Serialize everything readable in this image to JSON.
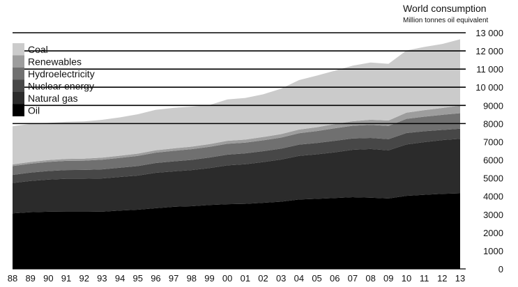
{
  "chart_data": {
    "type": "area",
    "stacked": true,
    "title": "World consumption",
    "subtitle": "Million tonnes oil equivalent",
    "ylim": [
      0,
      13000
    ],
    "y_ticks": [
      {
        "value": 0,
        "label": "0"
      },
      {
        "value": 1000,
        "label": "1000"
      },
      {
        "value": 2000,
        "label": "2000"
      },
      {
        "value": 3000,
        "label": "3000"
      },
      {
        "value": 4000,
        "label": "4000"
      },
      {
        "value": 5000,
        "label": "5000"
      },
      {
        "value": 6000,
        "label": "6000"
      },
      {
        "value": 7000,
        "label": "7000"
      },
      {
        "value": 8000,
        "label": "8000"
      },
      {
        "value": 9000,
        "label": "9000"
      },
      {
        "value": 10000,
        "label": "10 000"
      },
      {
        "value": 11000,
        "label": "11 000"
      },
      {
        "value": 12000,
        "label": "12 000"
      },
      {
        "value": 13000,
        "label": "13 000"
      }
    ],
    "categories": [
      "88",
      "89",
      "90",
      "91",
      "92",
      "93",
      "94",
      "95",
      "96",
      "97",
      "98",
      "99",
      "00",
      "01",
      "02",
      "03",
      "04",
      "05",
      "06",
      "07",
      "08",
      "09",
      "10",
      "11",
      "12",
      "13"
    ],
    "grid": "horizontal",
    "legend_position": "top-left",
    "series": [
      {
        "name": "Oil",
        "color": "#000000",
        "values": [
          3060,
          3120,
          3150,
          3160,
          3160,
          3150,
          3210,
          3260,
          3340,
          3420,
          3450,
          3520,
          3560,
          3580,
          3640,
          3700,
          3820,
          3860,
          3900,
          3950,
          3920,
          3880,
          4020,
          4080,
          4130,
          4160
        ]
      },
      {
        "name": "Natural gas",
        "color": "#2b2b2b",
        "values": [
          1670,
          1720,
          1770,
          1800,
          1800,
          1830,
          1850,
          1880,
          1950,
          1950,
          1990,
          2030,
          2140,
          2180,
          2240,
          2320,
          2400,
          2450,
          2520,
          2610,
          2680,
          2650,
          2830,
          2900,
          2960,
          3000
        ]
      },
      {
        "name": "Nuclear energy",
        "color": "#474747",
        "values": [
          440,
          460,
          470,
          480,
          490,
          500,
          510,
          520,
          540,
          550,
          560,
          580,
          590,
          600,
          600,
          600,
          620,
          620,
          630,
          620,
          610,
          610,
          630,
          600,
          560,
          560
        ]
      },
      {
        "name": "Hydroelectricity",
        "color": "#707070",
        "values": [
          490,
          490,
          500,
          510,
          510,
          530,
          540,
          560,
          570,
          580,
          590,
          590,
          600,
          590,
          600,
          610,
          630,
          660,
          690,
          700,
          720,
          730,
          780,
          800,
          830,
          850
        ]
      },
      {
        "name": "Renewables",
        "color": "#9d9d9d",
        "values": [
          90,
          95,
          100,
          105,
          110,
          115,
          120,
          125,
          130,
          135,
          140,
          150,
          160,
          170,
          180,
          190,
          200,
          210,
          230,
          250,
          280,
          300,
          340,
          360,
          380,
          420
        ]
      },
      {
        "name": "Coal",
        "color": "#cbcbcb",
        "values": [
          2100,
          2100,
          2050,
          2040,
          2050,
          2080,
          2110,
          2170,
          2230,
          2230,
          2200,
          2150,
          2280,
          2290,
          2350,
          2500,
          2720,
          2840,
          2940,
          3060,
          3150,
          3120,
          3420,
          3480,
          3520,
          3650
        ]
      }
    ]
  }
}
